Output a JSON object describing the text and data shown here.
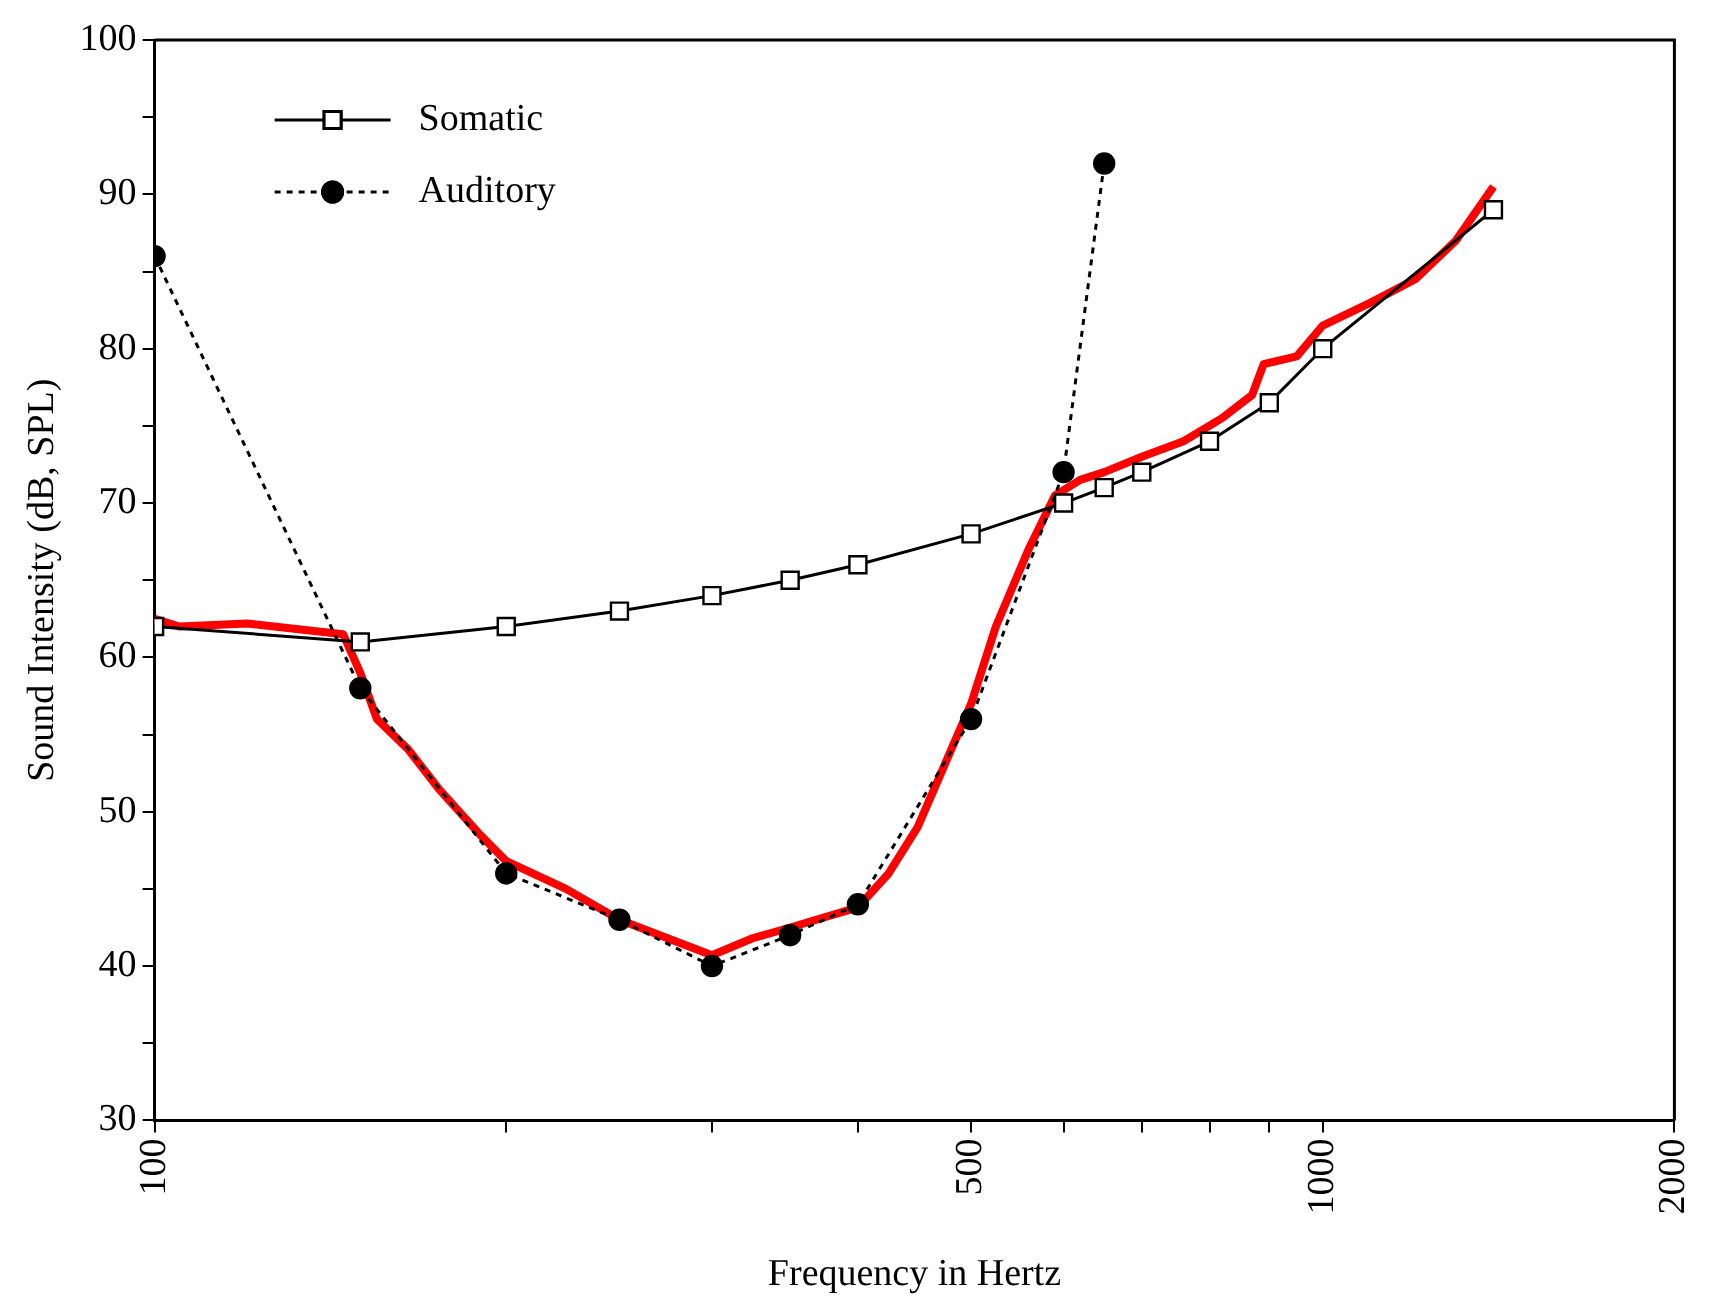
{
  "chart_data": {
    "type": "line",
    "xlabel": "Frequency in Hertz",
    "ylabel": "Sound Intensity (dB, SPL)",
    "log": "x",
    "xlim": [
      100,
      2000
    ],
    "xticks": [
      100,
      {
        "value": 200,
        "label": null
      },
      {
        "value": 300,
        "label": null
      },
      {
        "value": 400,
        "label": null
      },
      500,
      {
        "value": 600,
        "label": null
      },
      {
        "value": 700,
        "label": null
      },
      {
        "value": 800,
        "label": null
      },
      {
        "value": 900,
        "label": null
      },
      1000,
      2000
    ],
    "ylim": [
      30,
      100
    ],
    "yticks": [
      30,
      {
        "value": 35,
        "label": null
      },
      40,
      {
        "value": 45,
        "label": null
      },
      50,
      {
        "value": 55,
        "label": null
      },
      60,
      {
        "value": 65,
        "label": null
      },
      70,
      {
        "value": 75,
        "label": null
      },
      80,
      {
        "value": 85,
        "label": null
      },
      90,
      {
        "value": 95,
        "label": null
      },
      100
    ],
    "grid": false,
    "legend": "top left",
    "series": [
      {
        "name": "Somatic",
        "color": "#000000",
        "marker": "square",
        "line_style": "solid",
        "x": [
          100,
          150,
          200,
          250,
          300,
          350,
          400,
          500,
          600,
          650,
          700,
          800,
          900,
          1000,
          1400
        ],
        "values": [
          62,
          61,
          62,
          63,
          64,
          65,
          66,
          68,
          70,
          71,
          72,
          74,
          76.5,
          80,
          89
        ]
      },
      {
        "name": "Auditory",
        "color": "#000000",
        "marker": "circle",
        "line_style": "dotted",
        "x": [
          100,
          150,
          200,
          250,
          300,
          350,
          400,
          500,
          600,
          650
        ],
        "values": [
          86,
          58,
          46,
          43,
          40,
          42,
          44,
          56,
          72,
          92
        ]
      },
      {
        "color": "#ff0000",
        "marker": "none",
        "line_style": "solid",
        "x": [
          100,
          105,
          120,
          145,
          150,
          155,
          165,
          175,
          190,
          200,
          225,
          250,
          300,
          325,
          350,
          400,
          425,
          450,
          500,
          525,
          560,
          590,
          620,
          650,
          700,
          760,
          820,
          870,
          890,
          950,
          1000,
          1100,
          1200,
          1300,
          1400
        ],
        "values": [
          62.5,
          62,
          62.2,
          61.5,
          59,
          56,
          54,
          51.5,
          48.5,
          46.8,
          45,
          43,
          40.7,
          41.8,
          42.5,
          43.8,
          46,
          49,
          57,
          62,
          67,
          70.5,
          71.5,
          72,
          73,
          74,
          75.5,
          77,
          79,
          79.5,
          81.5,
          83,
          84.5,
          87,
          90.5
        ]
      }
    ]
  }
}
